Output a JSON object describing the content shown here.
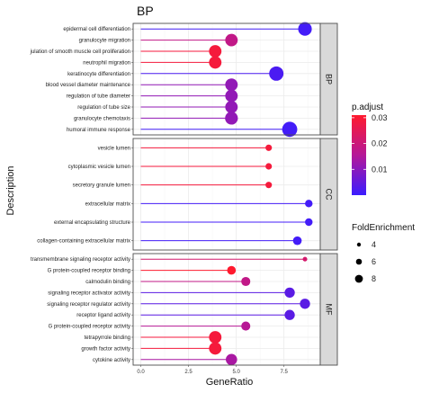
{
  "chart_data": {
    "type": "scatter",
    "title": "BP",
    "xlabel": "GeneRatio",
    "ylabel": "Description",
    "xlim": [
      -0.4,
      9.4
    ],
    "xticks": [
      "0.0",
      "2.5",
      "5.0",
      "7.5"
    ],
    "xtick_values": [
      0,
      2.5,
      5,
      7.5
    ],
    "grid": true,
    "legend_position": "right",
    "color_legend": {
      "title": "p.adjust",
      "min": 0.0,
      "max": 0.031,
      "ticks": [
        "0.03",
        "0.02",
        "0.01"
      ],
      "tick_values": [
        0.03,
        0.02,
        0.01
      ],
      "low_color": "#3b1cff",
      "high_color": "#ff1a2e"
    },
    "size_legend": {
      "title": "FoldEnrichment",
      "labels": [
        "4",
        "6",
        "8"
      ],
      "values": [
        4,
        6,
        8
      ]
    },
    "panels": [
      {
        "label": "BP",
        "terms": [
          {
            "term": "epidermal cell differentiation",
            "x": 8.6,
            "p": 0.001,
            "size": 7.2
          },
          {
            "term": "granulocyte migration",
            "x": 4.75,
            "p": 0.018,
            "size": 6.6
          },
          {
            "term": "julation of smooth muscle cell proliferation",
            "x": 3.9,
            "p": 0.029,
            "size": 6.6
          },
          {
            "term": "neutrophil migration",
            "x": 3.9,
            "p": 0.029,
            "size": 6.6
          },
          {
            "term": "keratinocyte differentiation",
            "x": 7.1,
            "p": 0.002,
            "size": 7.6
          },
          {
            "term": "blood vessel diameter maintenance",
            "x": 4.75,
            "p": 0.011,
            "size": 6.6
          },
          {
            "term": "regulation of tube diameter",
            "x": 4.75,
            "p": 0.011,
            "size": 6.6
          },
          {
            "term": "regulation of tube size",
            "x": 4.75,
            "p": 0.011,
            "size": 6.6
          },
          {
            "term": "granulocyte chemotaxis",
            "x": 4.75,
            "p": 0.011,
            "size": 6.8
          },
          {
            "term": "humoral immune response",
            "x": 7.8,
            "p": 0.001,
            "size": 8.0
          }
        ]
      },
      {
        "label": "CC",
        "terms": [
          {
            "term": "vesicle lumen",
            "x": 6.7,
            "p": 0.029,
            "size": 3.4
          },
          {
            "term": "cytoplasmic vesicle lumen",
            "x": 6.7,
            "p": 0.029,
            "size": 3.4
          },
          {
            "term": "secretory granule lumen",
            "x": 6.7,
            "p": 0.029,
            "size": 3.4
          },
          {
            "term": "extracellular matrix",
            "x": 8.8,
            "p": 0.001,
            "size": 4.0
          },
          {
            "term": "external encapsulating structure",
            "x": 8.8,
            "p": 0.001,
            "size": 4.0
          },
          {
            "term": "collagen-containing extracellular matrix",
            "x": 8.2,
            "p": 0.001,
            "size": 4.6
          }
        ]
      },
      {
        "label": "MF",
        "terms": [
          {
            "term": "transmembrane signaling receptor activity",
            "x": 8.6,
            "p": 0.022,
            "size": 2.4
          },
          {
            "term": "G protein-coupled receptor binding",
            "x": 4.75,
            "p": 0.031,
            "size": 4.6
          },
          {
            "term": "calmodulin binding",
            "x": 5.5,
            "p": 0.018,
            "size": 4.8
          },
          {
            "term": "signaling receptor activator activity",
            "x": 7.8,
            "p": 0.004,
            "size": 5.4
          },
          {
            "term": "signaling receptor regulator activity",
            "x": 8.6,
            "p": 0.004,
            "size": 5.4
          },
          {
            "term": "receptor ligand activity",
            "x": 7.8,
            "p": 0.004,
            "size": 5.4
          },
          {
            "term": "G protein-coupled receptor activity",
            "x": 5.5,
            "p": 0.016,
            "size": 4.8
          },
          {
            "term": "tetrapyrrole binding",
            "x": 3.9,
            "p": 0.029,
            "size": 6.6
          },
          {
            "term": "growth factor activity",
            "x": 3.9,
            "p": 0.029,
            "size": 6.6
          },
          {
            "term": "cytokine activity",
            "x": 4.75,
            "p": 0.014,
            "size": 6.0
          }
        ]
      }
    ]
  }
}
